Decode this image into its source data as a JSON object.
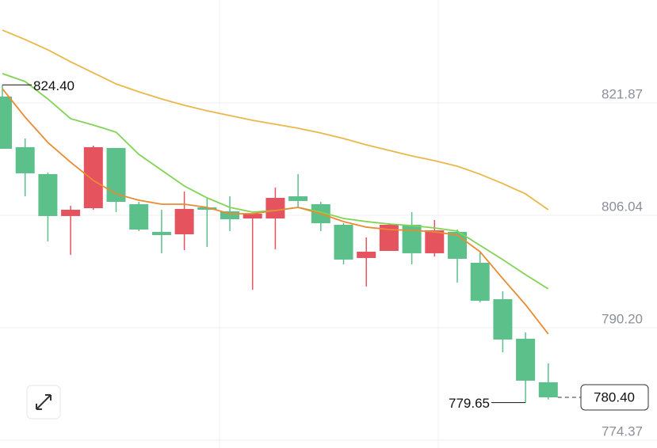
{
  "chart_data": {
    "type": "candlestick",
    "ylim": [
      773.26,
      836.36
    ],
    "yticks": [
      821.87,
      806.04,
      {
        "value": 790.2,
        "label": "790.20"
      },
      774.37
    ],
    "up_color": "#e5535f",
    "down_color": "#5bc08a",
    "open": [
      822.76,
      815.63,
      811.84,
      805.93,
      807.04,
      815.52,
      807.6,
      803.7,
      803.36,
      807.15,
      806.6,
      805.59,
      805.59,
      808.71,
      807.6,
      804.7,
      800.02,
      801.02,
      804.7,
      800.69,
      803.7,
      799.35,
      794.22,
      788.65,
      782.52
    ],
    "high": [
      824.4,
      816.85,
      812.06,
      807.38,
      815.85,
      815.52,
      807.93,
      806.82,
      809.38,
      808.49,
      808.71,
      806.26,
      809.94,
      811.84,
      807.93,
      804.92,
      802.92,
      804.92,
      806.49,
      805.37,
      804.03,
      800.91,
      795.34,
      789.54,
      785.19
    ],
    "low": [
      815.4,
      808.71,
      802.36,
      800.47,
      806.82,
      806.49,
      803.81,
      800.69,
      801.13,
      801.58,
      803.81,
      795.56,
      801.25,
      807.15,
      803.81,
      799.13,
      796.01,
      801.02,
      799.13,
      800.24,
      796.56,
      793.78,
      786.75,
      779.65,
      780.1
    ],
    "close": [
      815.4,
      811.95,
      805.93,
      806.82,
      815.63,
      807.93,
      804.03,
      803.25,
      806.93,
      806.82,
      805.48,
      806.26,
      808.49,
      808.05,
      804.92,
      799.8,
      800.91,
      804.7,
      800.69,
      803.92,
      799.91,
      794.0,
      788.54,
      782.74,
      780.4
    ],
    "lines": [
      {
        "color": "#e9b84a",
        "values": [
          832.12,
          830.79,
          829.34,
          827.66,
          826.1,
          824.54,
          823.43,
          822.42,
          821.53,
          820.75,
          820.08,
          819.42,
          818.86,
          818.3,
          817.63,
          816.85,
          815.96,
          815.18,
          814.4,
          813.73,
          812.95,
          811.83,
          810.5,
          809.05,
          806.82
        ]
      },
      {
        "color": "#82d356",
        "values": [
          825.99,
          824.88,
          822.42,
          819.64,
          818.75,
          817.74,
          814.62,
          812.39,
          810.16,
          808.49,
          807.15,
          806.48,
          806.71,
          807.15,
          806.48,
          805.59,
          805.15,
          804.81,
          804.59,
          804.25,
          803.81,
          801.8,
          799.79,
          797.68,
          795.67
        ]
      },
      {
        "color": "#ea8b32",
        "values": [
          823.87,
          819.86,
          816.29,
          813.51,
          810.94,
          809.05,
          808.16,
          807.6,
          807.6,
          807.15,
          806.26,
          806.26,
          806.71,
          807.15,
          806.26,
          805.15,
          804.37,
          804.03,
          803.92,
          803.7,
          803.25,
          800.91,
          797.12,
          793.44,
          789.32
        ]
      }
    ],
    "max_label": "824.40",
    "min_label": "779.65",
    "last_label": "780.40"
  }
}
